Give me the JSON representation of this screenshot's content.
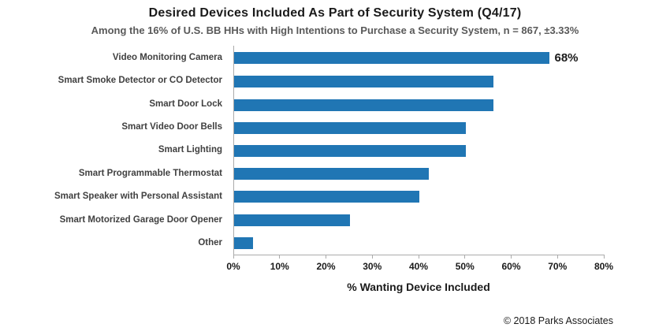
{
  "chart_data": {
    "type": "bar",
    "orientation": "horizontal",
    "title": "Desired Devices Included As Part of Security System (Q4/17)",
    "subtitle": "Among the 16% of U.S. BB HHs with High Intentions to Purchase a Security System, n = 867, ±3.33%",
    "categories": [
      "Video Monitoring Camera",
      "Smart Smoke Detector or CO Detector",
      "Smart Door Lock",
      "Smart Video Door Bells",
      "Smart Lighting",
      "Smart Programmable Thermostat",
      "Smart Speaker with Personal Assistant",
      "Smart Motorized Garage Door Opener",
      "Other"
    ],
    "values": [
      68,
      56,
      56,
      50,
      50,
      42,
      40,
      25,
      4
    ],
    "value_labels": [
      "68%",
      "",
      "",
      "",
      "",
      "",
      "",
      "",
      ""
    ],
    "xlabel": "% Wanting Device Included",
    "xlim": [
      0,
      80
    ],
    "xticks": [
      "0%",
      "10%",
      "20%",
      "30%",
      "40%",
      "50%",
      "60%",
      "70%",
      "80%"
    ],
    "grid": false,
    "legend": false,
    "bar_color": "#2076b4",
    "axis_color": "#ababab"
  },
  "footer": "© 2018 Parks Associates"
}
